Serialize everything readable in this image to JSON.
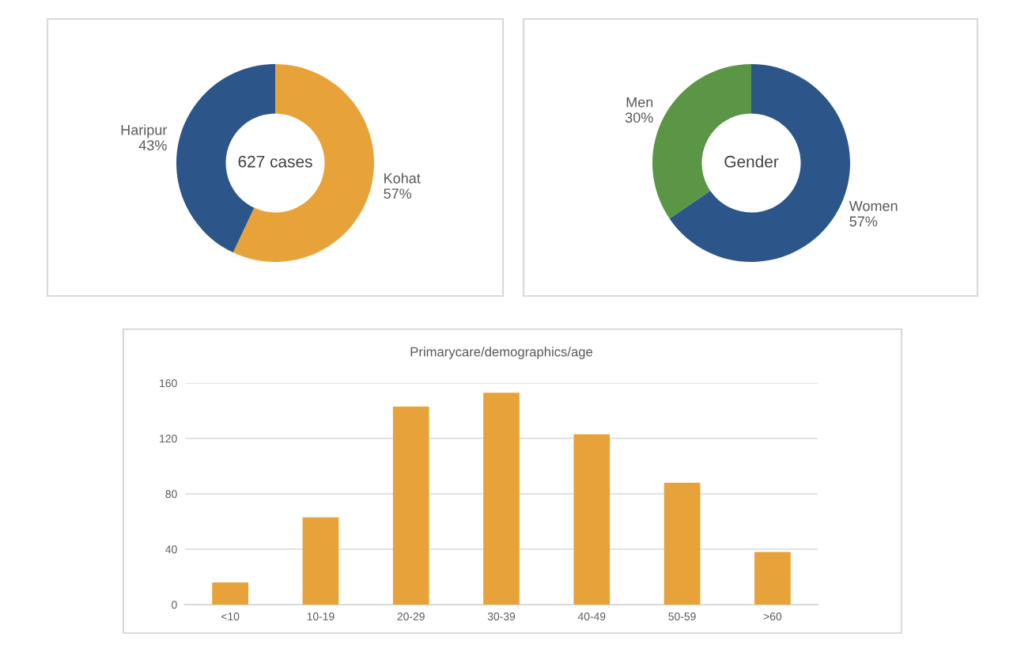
{
  "chart_data": [
    {
      "type": "donut",
      "categories": [
        "Kohat",
        "Haripur"
      ],
      "values": [
        57,
        43
      ],
      "value_labels": [
        "57%",
        "43%"
      ],
      "colors": [
        "#e8a23a",
        "#2c5689"
      ],
      "annotations": [
        "627 cases"
      ]
    },
    {
      "type": "donut",
      "categories": [
        "Women",
        "Men"
      ],
      "values": [
        57,
        30
      ],
      "value_labels": [
        "57%",
        "30%"
      ],
      "colors": [
        "#2c5689",
        "#5a9645"
      ],
      "annotations": [
        "Gender"
      ]
    },
    {
      "type": "bar",
      "title": "Primarycare/demographics/age",
      "categories": [
        "<10",
        "10-19",
        "20-29",
        "30-39",
        "40-49",
        "50-59",
        ">60"
      ],
      "values": [
        16,
        63,
        143,
        153,
        123,
        88,
        38
      ],
      "color": "#e8a23a",
      "ylim": [
        0,
        160
      ],
      "yticks": [
        0,
        40,
        80,
        120,
        160
      ],
      "grid": "y"
    }
  ]
}
